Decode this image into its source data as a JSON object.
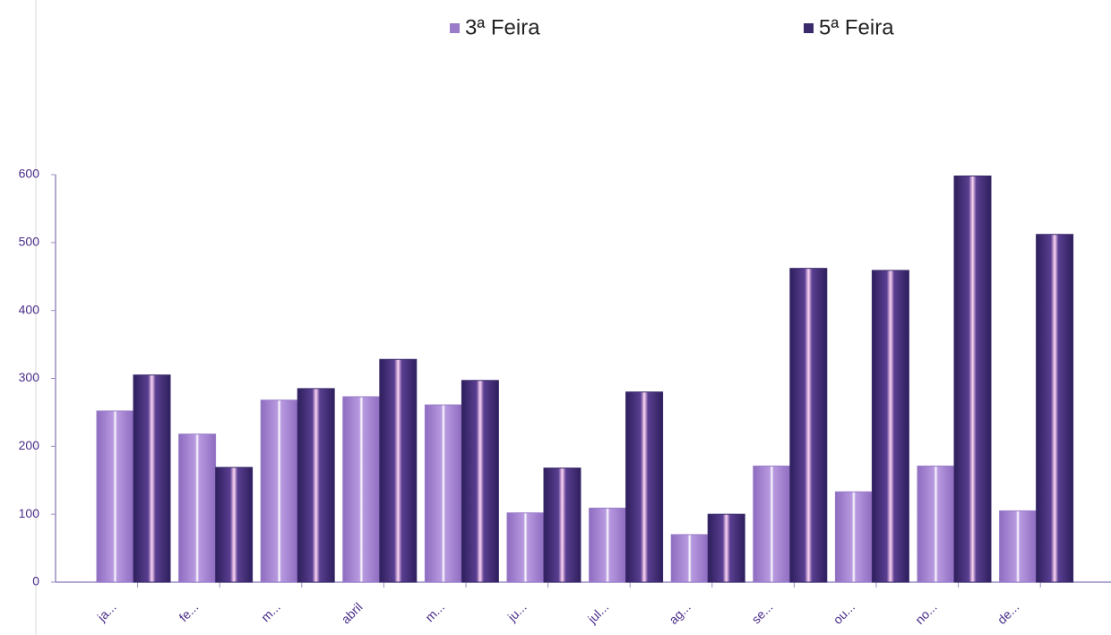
{
  "chart_data": {
    "type": "bar",
    "categories": [
      "ja...",
      "fe...",
      "m...",
      "abril",
      "m...",
      "ju...",
      "jul...",
      "ag...",
      "se...",
      "ou...",
      "no...",
      "de..."
    ],
    "series": [
      {
        "name": "3ª Feira",
        "color": "#9a7cc8",
        "values": [
          252,
          218,
          268,
          273,
          261,
          102,
          109,
          70,
          171,
          133,
          171,
          105
        ]
      },
      {
        "name": "5ª Feira",
        "color": "#3a2a6c",
        "values": [
          305,
          169,
          285,
          328,
          297,
          168,
          280,
          100,
          462,
          459,
          598,
          512
        ]
      }
    ],
    "ylim": [
      0,
      600
    ],
    "yticks": [
      0,
      100,
      200,
      300,
      400,
      500,
      600
    ]
  }
}
